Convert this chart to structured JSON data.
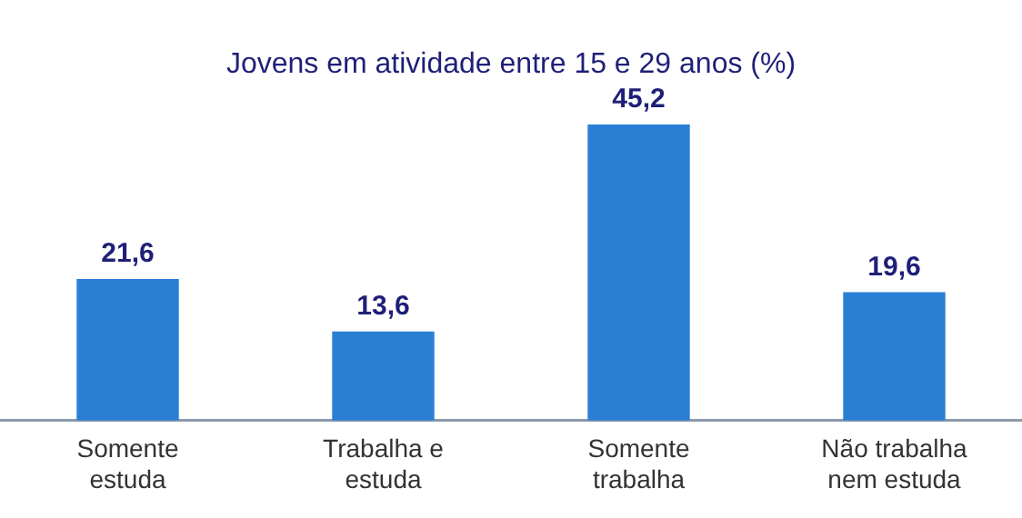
{
  "chart_data": {
    "type": "bar",
    "title": "Jovens em atividade entre 15 e 29 anos (%)",
    "categories": [
      "Somente estuda",
      "Trabalha e estuda",
      "Somente trabalha",
      "Não trabalha nem estuda"
    ],
    "values": [
      21.6,
      13.6,
      45.2,
      19.6
    ],
    "value_labels": [
      "21,6",
      "13,6",
      "45,2",
      "19,6"
    ],
    "color": "#2a7fd5",
    "grid": false,
    "legend": false,
    "tick_labels": "x"
  }
}
